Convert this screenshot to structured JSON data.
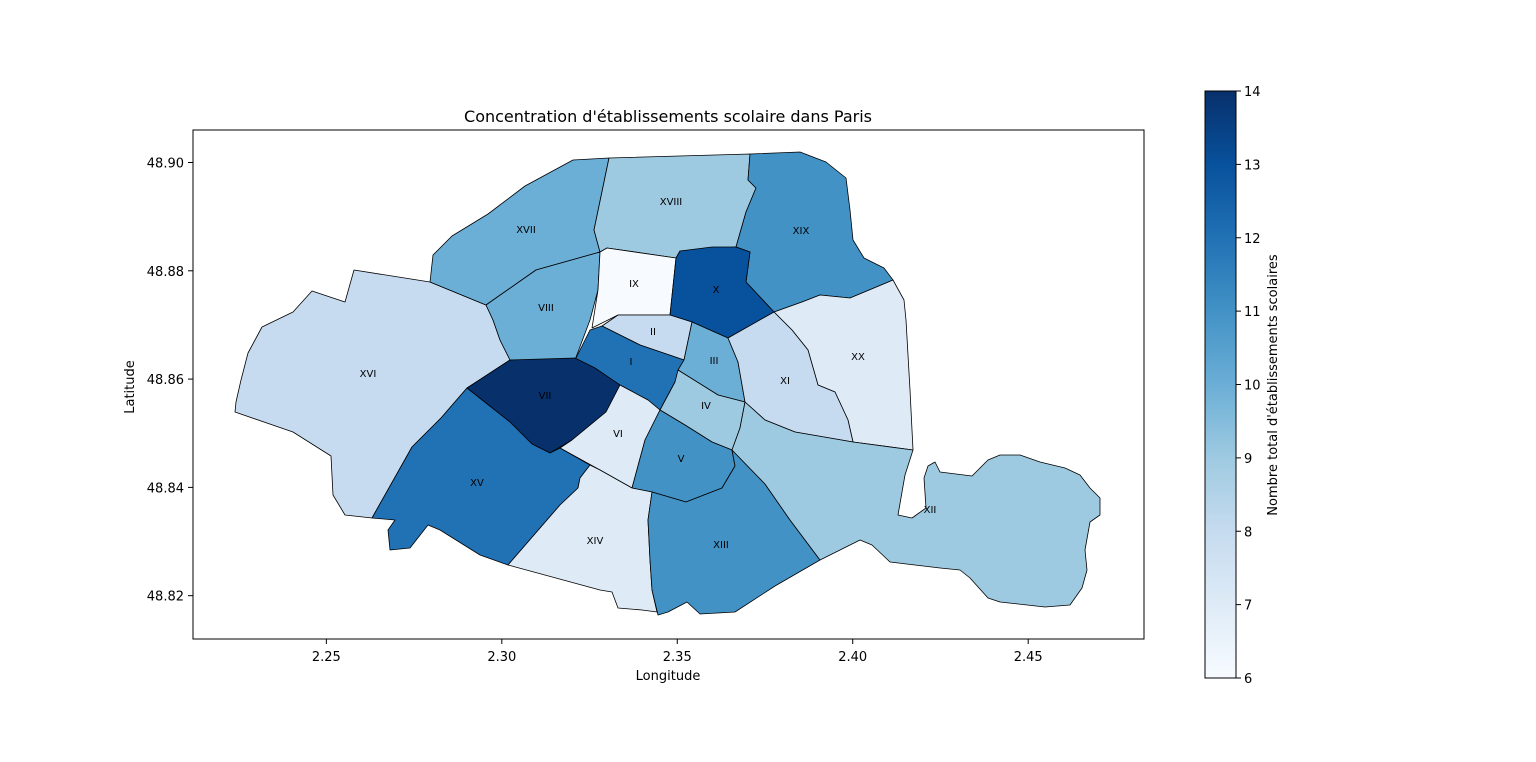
{
  "chart_data": {
    "type": "choropleth",
    "title": "Concentration d'établissements scolaire dans Paris",
    "xlabel": "Longitude",
    "ylabel": "Latitude",
    "xlim": [
      2.212,
      2.483
    ],
    "ylim": [
      48.812,
      48.906
    ],
    "xticks": [
      "2.25",
      "2.30",
      "2.35",
      "2.40",
      "2.45"
    ],
    "xtick_values": [
      2.25,
      2.3,
      2.35,
      2.4,
      2.45
    ],
    "yticks": [
      "48.82",
      "48.84",
      "48.86",
      "48.88",
      "48.90"
    ],
    "ytick_values": [
      48.82,
      48.84,
      48.86,
      48.88,
      48.9
    ],
    "colormap": "Blues",
    "colorbar": {
      "label": "Nombre total d'établissements scolaires",
      "min": 6,
      "max": 14,
      "ticks": [
        "6",
        "7",
        "8",
        "9",
        "10",
        "11",
        "12",
        "13",
        "14"
      ]
    },
    "regions": [
      {
        "name": "I",
        "value": 12
      },
      {
        "name": "II",
        "value": 8
      },
      {
        "name": "III",
        "value": 10
      },
      {
        "name": "IV",
        "value": 9
      },
      {
        "name": "V",
        "value": 11
      },
      {
        "name": "VI",
        "value": 7
      },
      {
        "name": "VII",
        "value": 14
      },
      {
        "name": "VIII",
        "value": 10
      },
      {
        "name": "IX",
        "value": 6
      },
      {
        "name": "X",
        "value": 13
      },
      {
        "name": "XI",
        "value": 8
      },
      {
        "name": "XII",
        "value": 9
      },
      {
        "name": "XIII",
        "value": 11
      },
      {
        "name": "XIV",
        "value": 7
      },
      {
        "name": "XV",
        "value": 12
      },
      {
        "name": "XVI",
        "value": 8
      },
      {
        "name": "XVII",
        "value": 10
      },
      {
        "name": "XVIII",
        "value": 9
      },
      {
        "name": "XIX",
        "value": 11
      },
      {
        "name": "XX",
        "value": 7
      }
    ]
  }
}
